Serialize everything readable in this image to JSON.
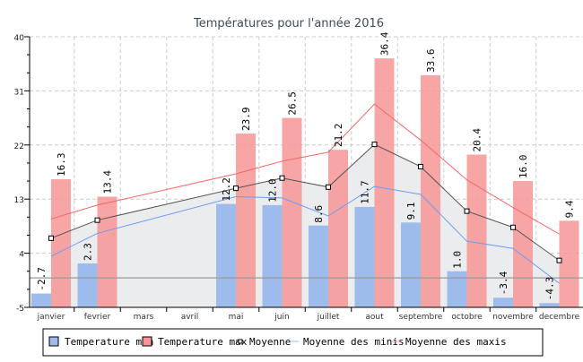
{
  "chart_data": {
    "type": "bar",
    "title": "Températures pour l'année 2016",
    "xlabel": "",
    "ylabel": "",
    "ylim": [
      -5,
      40
    ],
    "yticks": [
      40,
      31,
      22,
      13,
      4,
      -5
    ],
    "grid": true,
    "legend_position": "bottom",
    "categories": [
      "janvier",
      "fevrier",
      "mars",
      "avril",
      "mai",
      "juin",
      "juillet",
      "aout",
      "septembre",
      "octobre",
      "novembre",
      "decembre"
    ],
    "series": [
      {
        "name": "Temperature min",
        "kind": "bar",
        "color": "#9dbcec",
        "values": [
          -2.7,
          2.3,
          null,
          null,
          12.2,
          12.0,
          8.6,
          11.7,
          9.1,
          1.0,
          -3.4,
          -4.3
        ]
      },
      {
        "name": "Temperature max",
        "kind": "bar",
        "color": "#f79595",
        "values": [
          16.3,
          13.4,
          null,
          null,
          23.9,
          26.5,
          21.2,
          36.4,
          33.6,
          20.4,
          16.0,
          9.4
        ]
      },
      {
        "name": "Moyenne",
        "kind": "line-marker",
        "color": "#555555",
        "values": [
          6.5,
          9.5,
          null,
          null,
          14.8,
          16.5,
          15.0,
          22.1,
          18.4,
          11.0,
          8.3,
          2.8
        ]
      },
      {
        "name": "Moyenne des minis",
        "kind": "line",
        "color": "#6f9cf0",
        "values": [
          3.5,
          7.3,
          null,
          null,
          13.4,
          13.2,
          10.2,
          15.1,
          13.8,
          6.0,
          4.8,
          -1.0
        ]
      },
      {
        "name": "Moyenne des maxis",
        "kind": "line",
        "color": "#f26a6a",
        "values": [
          9.7,
          12.0,
          null,
          null,
          17.2,
          19.3,
          20.8,
          28.8,
          22.8,
          16.2,
          11.6,
          7.2
        ]
      }
    ],
    "reference_line": {
      "value": -0.1,
      "color": "#999999"
    }
  }
}
